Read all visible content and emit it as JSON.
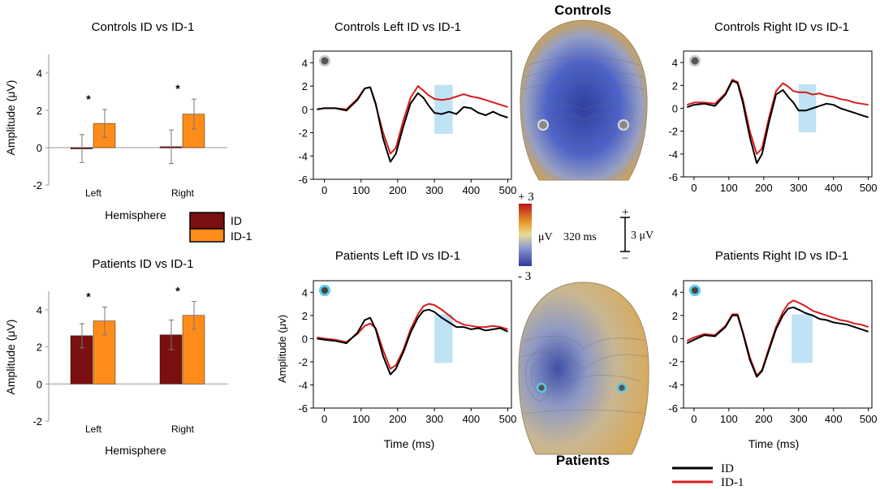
{
  "colors": {
    "id_bar": "#7a1010",
    "id1_bar": "#ff8c1a",
    "id_line": "#000000",
    "id1_line": "#d81b1b",
    "window": "#bfe3f5",
    "ring_patients": "#5bc8e8"
  },
  "bar_legend": {
    "items": [
      {
        "label": "ID",
        "color": "#7a1010"
      },
      {
        "label": "ID-1",
        "color": "#ff8c1a"
      }
    ]
  },
  "line_legend": {
    "items": [
      {
        "label": "ID",
        "color": "#000000"
      },
      {
        "label": "ID-1",
        "color": "#d81b1b"
      }
    ]
  },
  "scale": {
    "plus_label": "+ 3",
    "minus_label": "- 3",
    "unit_label": "μV",
    "time_label": "320 ms",
    "bar_plus": "+",
    "bar_minus": "−",
    "bar_label": "3 μV"
  },
  "topomaps": {
    "controls_label": "Controls",
    "patients_label": "Patients"
  },
  "chart_data": [
    {
      "type": "bar",
      "title": "Controls ID vs ID-1",
      "xlabel": "Hemisphere",
      "ylabel": "Amplitude (μV)",
      "ylim": [
        -2,
        5
      ],
      "yticks": [
        "-2",
        "0",
        "2",
        "4"
      ],
      "categories": [
        "Left",
        "Right"
      ],
      "series": [
        {
          "name": "ID",
          "values": [
            -0.05,
            0.05
          ],
          "errors": [
            0.75,
            0.9
          ]
        },
        {
          "name": "ID-1",
          "values": [
            1.3,
            1.8
          ],
          "errors": [
            0.75,
            0.8
          ]
        }
      ],
      "annotations": [
        "*",
        "*"
      ]
    },
    {
      "type": "bar",
      "title": "Patients ID vs ID-1",
      "xlabel": "Hemisphere",
      "ylabel": "Amplitude (μV)",
      "ylim": [
        -2,
        5
      ],
      "yticks": [
        "-2",
        "0",
        "2",
        "4"
      ],
      "categories": [
        "Left",
        "Right"
      ],
      "series": [
        {
          "name": "ID",
          "values": [
            2.6,
            2.65
          ],
          "errors": [
            0.65,
            0.8
          ]
        },
        {
          "name": "ID-1",
          "values": [
            3.4,
            3.7
          ],
          "errors": [
            0.75,
            0.75
          ]
        }
      ],
      "annotations": [
        "*",
        "*"
      ]
    },
    {
      "type": "line",
      "title": "Controls Left ID vs ID-1",
      "xlabel": "",
      "ylabel": "",
      "xlim": [
        -30,
        510
      ],
      "ylim": [
        -6,
        5
      ],
      "xticks": [
        "0",
        "100",
        "200",
        "300",
        "400",
        "500"
      ],
      "yticks": [
        "-6",
        "-4",
        "-2",
        "0",
        "2",
        "4"
      ],
      "window": [
        300,
        350
      ],
      "marker": "gray",
      "x": [
        -20,
        0,
        30,
        60,
        90,
        110,
        125,
        140,
        160,
        180,
        195,
        215,
        235,
        255,
        270,
        285,
        300,
        320,
        340,
        360,
        380,
        400,
        420,
        440,
        460,
        480,
        500
      ],
      "series": [
        {
          "name": "ID",
          "values": [
            0,
            0.1,
            0.1,
            -0.1,
            0.8,
            1.8,
            1.9,
            0.5,
            -2.5,
            -4.5,
            -3.8,
            -1.5,
            0.5,
            1.4,
            1.0,
            0.3,
            -0.3,
            -0.4,
            -0.2,
            -0.4,
            0.2,
            0.1,
            -0.3,
            -0.5,
            -0.2,
            -0.5,
            -0.7
          ]
        },
        {
          "name": "ID-1",
          "values": [
            0,
            0.1,
            0.1,
            0,
            0.9,
            1.8,
            1.9,
            0.4,
            -2.0,
            -3.8,
            -3.3,
            -1.0,
            1.0,
            2.0,
            1.6,
            1.2,
            0.9,
            0.8,
            0.9,
            1.1,
            1.3,
            1.1,
            1.0,
            0.8,
            0.6,
            0.4,
            0.2
          ]
        }
      ]
    },
    {
      "type": "line",
      "title": "Controls Right ID vs ID-1",
      "xlabel": "",
      "ylabel": "",
      "xlim": [
        -30,
        510
      ],
      "ylim": [
        -6,
        5
      ],
      "xticks": [
        "0",
        "100",
        "200",
        "300",
        "400",
        "500"
      ],
      "yticks": [
        "-6",
        "-4",
        "-2",
        "0",
        "2",
        "4"
      ],
      "window": [
        300,
        350
      ],
      "marker": "gray",
      "x": [
        -20,
        0,
        30,
        60,
        90,
        110,
        125,
        140,
        160,
        180,
        195,
        215,
        235,
        255,
        270,
        285,
        300,
        320,
        340,
        360,
        380,
        400,
        420,
        440,
        460,
        480,
        500
      ],
      "series": [
        {
          "name": "ID",
          "values": [
            0.1,
            0.3,
            0.4,
            0.2,
            1.2,
            2.4,
            2.2,
            0.5,
            -2.5,
            -4.8,
            -4.0,
            -1.2,
            1.2,
            1.6,
            1.0,
            0.5,
            -0.2,
            -0.2,
            0,
            0.2,
            0.4,
            0.3,
            0,
            -0.2,
            -0.4,
            -0.6,
            -0.8
          ]
        },
        {
          "name": "ID-1",
          "values": [
            0.3,
            0.5,
            0.5,
            0.4,
            1.3,
            2.5,
            2.3,
            0.8,
            -2.0,
            -4.0,
            -3.5,
            -0.8,
            1.5,
            2.2,
            1.9,
            1.5,
            1.4,
            1.4,
            1.2,
            1.3,
            1.1,
            1.0,
            0.8,
            0.7,
            0.5,
            0.4,
            0.3
          ]
        }
      ]
    },
    {
      "type": "line",
      "title": "Patients Left ID vs ID-1",
      "xlabel": "Time (ms)",
      "ylabel": "Amplitude (μv)",
      "xlim": [
        -30,
        510
      ],
      "ylim": [
        -6,
        5
      ],
      "xticks": [
        "0",
        "100",
        "200",
        "300",
        "400",
        "500"
      ],
      "yticks": [
        "-6",
        "-4",
        "-2",
        "0",
        "2",
        "4"
      ],
      "window": [
        300,
        350
      ],
      "marker": "cyan",
      "x": [
        -20,
        0,
        30,
        60,
        90,
        110,
        125,
        140,
        160,
        180,
        195,
        215,
        235,
        255,
        270,
        285,
        300,
        320,
        340,
        360,
        380,
        400,
        420,
        440,
        460,
        480,
        500
      ],
      "series": [
        {
          "name": "ID",
          "values": [
            0,
            -0.1,
            -0.2,
            -0.4,
            0.5,
            1.6,
            1.8,
            0.8,
            -1.5,
            -3.1,
            -2.6,
            -1.2,
            0.5,
            1.8,
            2.4,
            2.5,
            2.3,
            1.8,
            1.4,
            1.0,
            1.0,
            0.8,
            0.9,
            0.7,
            0.8,
            0.9,
            0.6
          ]
        },
        {
          "name": "ID-1",
          "values": [
            0.1,
            0,
            -0.1,
            -0.3,
            0.4,
            1.1,
            1.3,
            0.9,
            -1.0,
            -2.6,
            -2.3,
            -1.0,
            0.8,
            2.1,
            2.8,
            3.0,
            2.9,
            2.5,
            2.0,
            1.5,
            1.2,
            1.1,
            1.0,
            1.0,
            1.1,
            1.0,
            0.8
          ]
        }
      ]
    },
    {
      "type": "line",
      "title": "Patients Right ID vs ID-1",
      "xlabel": "Time (ms)",
      "ylabel": "",
      "xlim": [
        -30,
        510
      ],
      "ylim": [
        -6,
        5
      ],
      "xticks": [
        "0",
        "100",
        "200",
        "300",
        "400",
        "500"
      ],
      "yticks": [
        "-6",
        "-4",
        "-2",
        "0",
        "2",
        "4"
      ],
      "window": [
        280,
        340
      ],
      "marker": "cyan",
      "x": [
        -20,
        0,
        30,
        60,
        90,
        110,
        125,
        140,
        160,
        180,
        195,
        215,
        235,
        255,
        270,
        285,
        300,
        320,
        340,
        360,
        380,
        400,
        420,
        440,
        460,
        480,
        500
      ],
      "series": [
        {
          "name": "ID",
          "values": [
            -0.4,
            -0.1,
            0.3,
            0.2,
            1.0,
            2.0,
            2.0,
            0.5,
            -1.8,
            -3.3,
            -2.8,
            -1.0,
            0.8,
            2.0,
            2.6,
            2.7,
            2.5,
            2.2,
            2.0,
            1.7,
            1.6,
            1.4,
            1.3,
            1.2,
            1.0,
            0.8,
            0.6
          ]
        },
        {
          "name": "ID-1",
          "values": [
            -0.2,
            0.1,
            0.4,
            0.3,
            1.1,
            2.1,
            2.1,
            0.6,
            -1.6,
            -3.2,
            -2.7,
            -0.8,
            1.0,
            2.3,
            3.0,
            3.3,
            3.1,
            2.8,
            2.4,
            2.2,
            2.0,
            1.8,
            1.6,
            1.5,
            1.3,
            1.2,
            1.0
          ]
        }
      ]
    }
  ]
}
